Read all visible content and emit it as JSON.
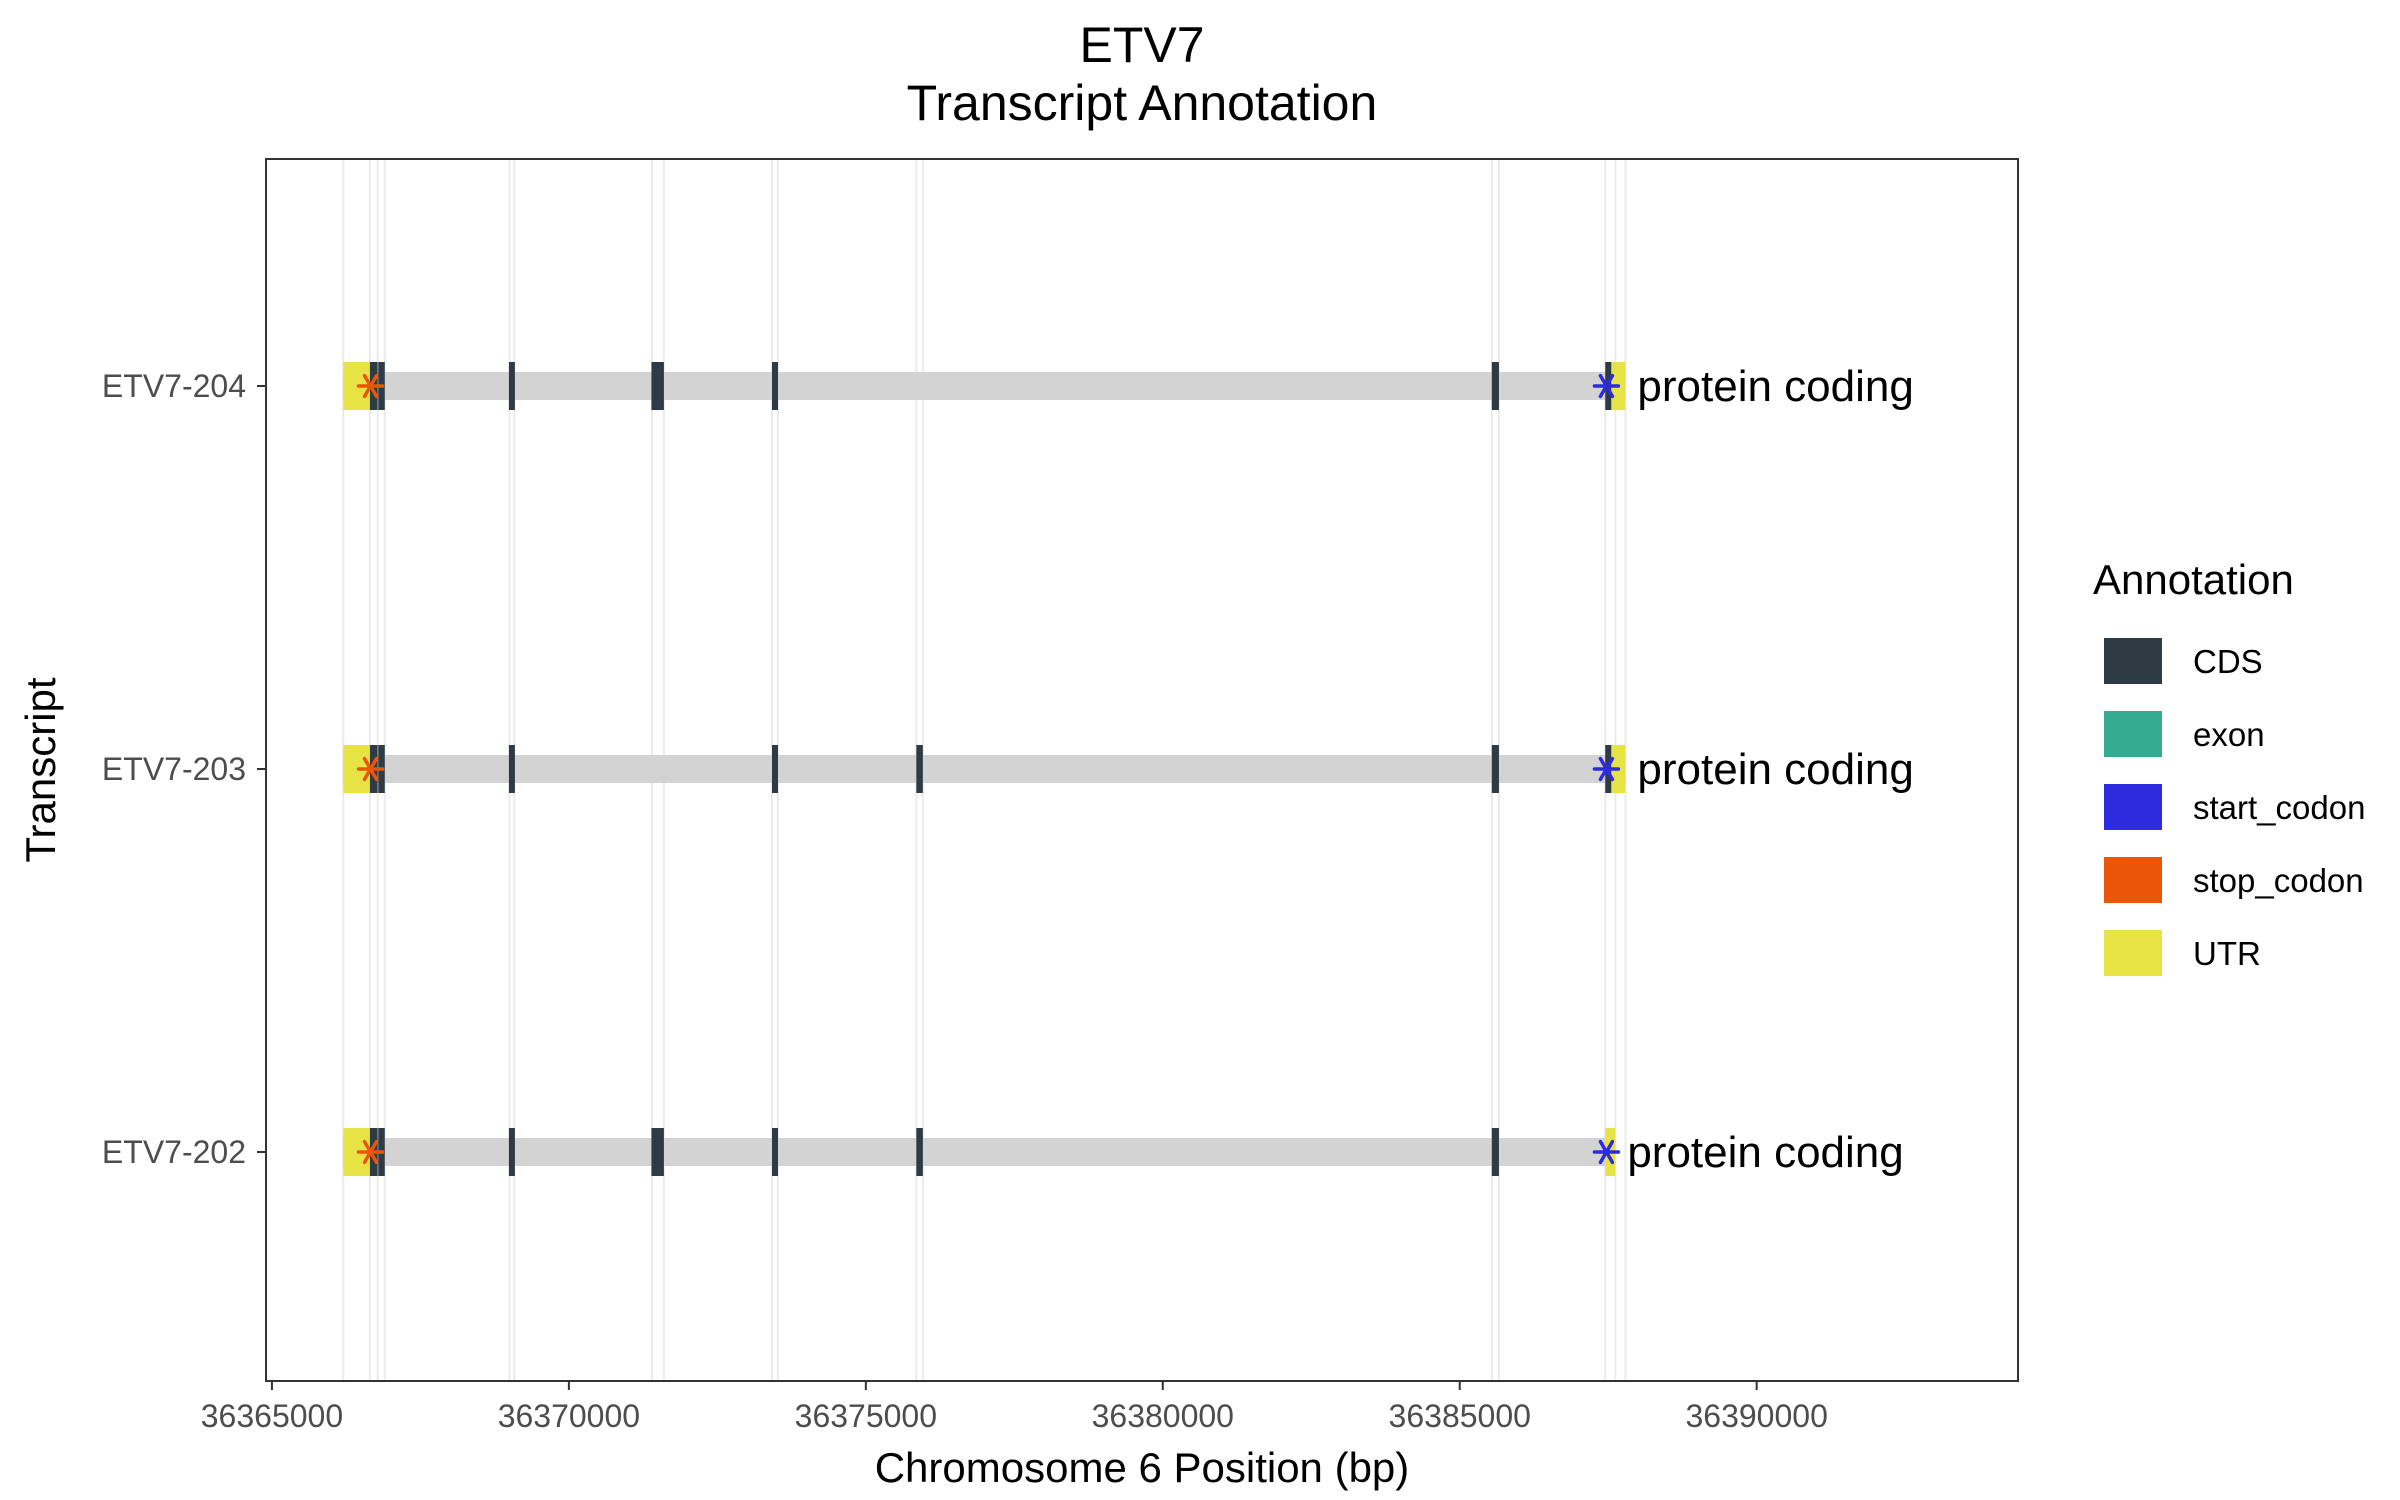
{
  "chart_data": {
    "type": "gene_structure",
    "title": "ETV7",
    "subtitle": "Transcript Annotation",
    "xlabel": "Chromosome 6 Position (bp)",
    "ylabel": "Transcript",
    "xlim": [
      36364900,
      36394400
    ],
    "x_ticks": [
      36365000,
      36370000,
      36375000,
      36380000,
      36385000,
      36390000
    ],
    "x_tick_labels": [
      "36365000",
      "36370000",
      "36375000",
      "36380000",
      "36385000",
      "36390000"
    ],
    "grid_x_positions": [
      36366200,
      36366650,
      36366780,
      36366900,
      36369000,
      36369080,
      36371400,
      36371600,
      36373420,
      36373520,
      36375850,
      36375960,
      36385540,
      36385660,
      36387450,
      36387620,
      36387790
    ],
    "legend": {
      "title": "Annotation",
      "position": "right",
      "items": [
        {
          "label": "CDS",
          "color": "#2e3b44"
        },
        {
          "label": "exon",
          "color": "#35ac8f"
        },
        {
          "label": "start_codon",
          "color": "#2c2cde"
        },
        {
          "label": "stop_codon",
          "color": "#ea5508"
        },
        {
          "label": "UTR",
          "color": "#e8e345"
        }
      ]
    },
    "intron_color": "#d3d3d3",
    "transcripts": [
      {
        "name": "ETV7-204",
        "biotype": "protein coding",
        "start": 36366200,
        "end": 36387790,
        "utr": [
          [
            36366200,
            36366650
          ],
          [
            36387530,
            36387790
          ]
        ],
        "cds": [
          [
            36366650,
            36366780
          ],
          [
            36366790,
            36366900
          ],
          [
            36368990,
            36369080
          ],
          [
            36371390,
            36371600
          ],
          [
            36373420,
            36373520
          ],
          [
            36385540,
            36385660
          ],
          [
            36387450,
            36387530
          ]
        ],
        "start_codon": 36387470,
        "stop_codon": 36366660
      },
      {
        "name": "ETV7-203",
        "biotype": "protein coding",
        "start": 36366200,
        "end": 36387790,
        "utr": [
          [
            36366200,
            36366650
          ],
          [
            36387530,
            36387790
          ]
        ],
        "cds": [
          [
            36366650,
            36366780
          ],
          [
            36366790,
            36366900
          ],
          [
            36368990,
            36369080
          ],
          [
            36373420,
            36373520
          ],
          [
            36375850,
            36375960
          ],
          [
            36385540,
            36385660
          ],
          [
            36387450,
            36387530
          ]
        ],
        "start_codon": 36387470,
        "stop_codon": 36366660
      },
      {
        "name": "ETV7-202",
        "biotype": "protein coding",
        "start": 36366200,
        "end": 36387620,
        "utr": [
          [
            36366200,
            36366650
          ],
          [
            36387450,
            36387620
          ]
        ],
        "cds": [
          [
            36366650,
            36366780
          ],
          [
            36366790,
            36366900
          ],
          [
            36368990,
            36369080
          ],
          [
            36371390,
            36371600
          ],
          [
            36373420,
            36373520
          ],
          [
            36375850,
            36375960
          ],
          [
            36385540,
            36385660
          ]
        ],
        "start_codon": 36387470,
        "stop_codon": 36366660
      }
    ]
  }
}
